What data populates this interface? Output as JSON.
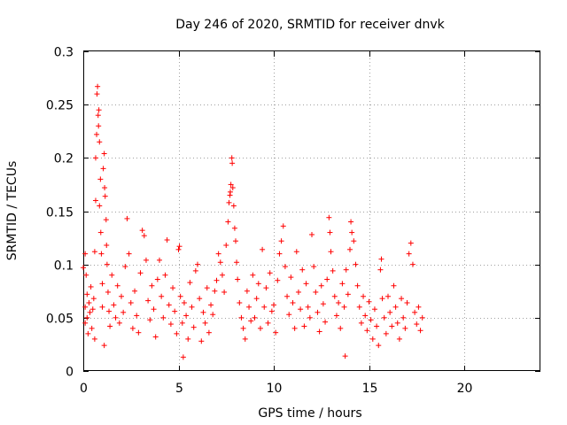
{
  "chart_data": {
    "type": "scatter",
    "title": "Day 246 of 2020, SRMTID for receiver dnvk",
    "xlabel": "GPS time / hours",
    "ylabel": "SRMTID / TECUs",
    "xlim": [
      0,
      24
    ],
    "ylim": [
      0,
      0.3
    ],
    "xticks": [
      0,
      5,
      10,
      15,
      20
    ],
    "xtick_labels": [
      "0",
      "5",
      "10",
      "15",
      "20"
    ],
    "yticks": [
      0,
      0.05,
      0.1,
      0.15,
      0.2,
      0.25,
      0.3
    ],
    "ytick_labels": [
      "0",
      "0.05",
      "0.1",
      "0.15",
      "0.2",
      "0.25",
      "0.3"
    ],
    "grid": true,
    "marker": "+",
    "color": "#ff0000",
    "series": [
      {
        "name": "SRMTID",
        "points": [
          [
            0.0,
            0.097
          ],
          [
            0.1,
            0.11
          ],
          [
            0.1,
            0.06
          ],
          [
            0.1,
            0.045
          ],
          [
            0.15,
            0.09
          ],
          [
            0.2,
            0.072
          ],
          [
            0.2,
            0.05
          ],
          [
            0.25,
            0.035
          ],
          [
            0.3,
            0.064
          ],
          [
            0.35,
            0.055
          ],
          [
            0.4,
            0.079
          ],
          [
            0.45,
            0.04
          ],
          [
            0.5,
            0.058
          ],
          [
            0.55,
            0.068
          ],
          [
            0.6,
            0.112
          ],
          [
            0.6,
            0.03
          ],
          [
            0.65,
            0.16
          ],
          [
            0.65,
            0.2
          ],
          [
            0.7,
            0.222
          ],
          [
            0.72,
            0.26
          ],
          [
            0.75,
            0.267
          ],
          [
            0.78,
            0.24
          ],
          [
            0.8,
            0.23
          ],
          [
            0.82,
            0.245
          ],
          [
            0.85,
            0.215
          ],
          [
            0.85,
            0.155
          ],
          [
            0.9,
            0.18
          ],
          [
            0.92,
            0.13
          ],
          [
            0.95,
            0.11
          ],
          [
            1.0,
            0.082
          ],
          [
            1.0,
            0.06
          ],
          [
            1.05,
            0.19
          ],
          [
            1.1,
            0.204
          ],
          [
            1.12,
            0.172
          ],
          [
            1.15,
            0.164
          ],
          [
            1.2,
            0.142
          ],
          [
            1.22,
            0.118
          ],
          [
            1.25,
            0.1
          ],
          [
            1.3,
            0.074
          ],
          [
            1.35,
            0.056
          ],
          [
            1.4,
            0.042
          ],
          [
            1.1,
            0.024
          ],
          [
            1.5,
            0.09
          ],
          [
            1.6,
            0.062
          ],
          [
            1.7,
            0.05
          ],
          [
            1.8,
            0.08
          ],
          [
            1.9,
            0.045
          ],
          [
            2.0,
            0.07
          ],
          [
            2.1,
            0.055
          ],
          [
            2.2,
            0.098
          ],
          [
            2.3,
            0.143
          ],
          [
            2.4,
            0.11
          ],
          [
            2.5,
            0.064
          ],
          [
            2.6,
            0.04
          ],
          [
            2.7,
            0.075
          ],
          [
            2.8,
            0.052
          ],
          [
            2.9,
            0.036
          ],
          [
            3.0,
            0.092
          ],
          [
            3.1,
            0.132
          ],
          [
            3.2,
            0.127
          ],
          [
            3.3,
            0.104
          ],
          [
            3.4,
            0.066
          ],
          [
            3.5,
            0.048
          ],
          [
            3.6,
            0.08
          ],
          [
            3.7,
            0.058
          ],
          [
            3.8,
            0.032
          ],
          [
            3.9,
            0.086
          ],
          [
            4.0,
            0.104
          ],
          [
            4.1,
            0.07
          ],
          [
            4.2,
            0.05
          ],
          [
            4.3,
            0.09
          ],
          [
            4.4,
            0.123
          ],
          [
            4.5,
            0.062
          ],
          [
            4.6,
            0.044
          ],
          [
            4.7,
            0.078
          ],
          [
            4.8,
            0.056
          ],
          [
            4.9,
            0.035
          ],
          [
            5.0,
            0.114
          ],
          [
            5.05,
            0.117
          ],
          [
            5.1,
            0.07
          ],
          [
            5.2,
            0.045
          ],
          [
            5.25,
            0.013
          ],
          [
            5.3,
            0.064
          ],
          [
            5.4,
            0.052
          ],
          [
            5.5,
            0.03
          ],
          [
            5.6,
            0.083
          ],
          [
            5.7,
            0.06
          ],
          [
            5.8,
            0.041
          ],
          [
            5.9,
            0.094
          ],
          [
            6.0,
            0.1
          ],
          [
            6.1,
            0.068
          ],
          [
            6.2,
            0.028
          ],
          [
            6.3,
            0.055
          ],
          [
            6.4,
            0.045
          ],
          [
            6.5,
            0.078
          ],
          [
            6.6,
            0.036
          ],
          [
            6.7,
            0.062
          ],
          [
            6.8,
            0.053
          ],
          [
            6.9,
            0.075
          ],
          [
            7.0,
            0.085
          ],
          [
            7.1,
            0.11
          ],
          [
            7.2,
            0.102
          ],
          [
            7.3,
            0.09
          ],
          [
            7.4,
            0.074
          ],
          [
            7.5,
            0.118
          ],
          [
            7.6,
            0.14
          ],
          [
            7.65,
            0.158
          ],
          [
            7.7,
            0.165
          ],
          [
            7.72,
            0.168
          ],
          [
            7.75,
            0.175
          ],
          [
            7.8,
            0.2
          ],
          [
            7.82,
            0.195
          ],
          [
            7.85,
            0.172
          ],
          [
            7.9,
            0.155
          ],
          [
            7.95,
            0.134
          ],
          [
            8.0,
            0.122
          ],
          [
            8.05,
            0.102
          ],
          [
            8.1,
            0.086
          ],
          [
            8.2,
            0.064
          ],
          [
            8.3,
            0.05
          ],
          [
            8.4,
            0.04
          ],
          [
            8.5,
            0.03
          ],
          [
            8.6,
            0.075
          ],
          [
            8.7,
            0.06
          ],
          [
            8.8,
            0.047
          ],
          [
            8.9,
            0.09
          ],
          [
            9.0,
            0.05
          ],
          [
            9.1,
            0.068
          ],
          [
            9.2,
            0.082
          ],
          [
            9.3,
            0.04
          ],
          [
            9.4,
            0.114
          ],
          [
            9.5,
            0.06
          ],
          [
            9.6,
            0.078
          ],
          [
            9.7,
            0.045
          ],
          [
            9.8,
            0.092
          ],
          [
            9.9,
            0.056
          ],
          [
            10.0,
            0.062
          ],
          [
            10.1,
            0.036
          ],
          [
            10.2,
            0.085
          ],
          [
            10.3,
            0.11
          ],
          [
            10.4,
            0.122
          ],
          [
            10.5,
            0.136
          ],
          [
            10.6,
            0.098
          ],
          [
            10.7,
            0.07
          ],
          [
            10.8,
            0.053
          ],
          [
            10.9,
            0.088
          ],
          [
            11.0,
            0.064
          ],
          [
            11.1,
            0.04
          ],
          [
            11.2,
            0.112
          ],
          [
            11.3,
            0.074
          ],
          [
            11.4,
            0.058
          ],
          [
            11.5,
            0.095
          ],
          [
            11.6,
            0.042
          ],
          [
            11.7,
            0.082
          ],
          [
            11.8,
            0.06
          ],
          [
            11.9,
            0.05
          ],
          [
            12.0,
            0.128
          ],
          [
            12.1,
            0.098
          ],
          [
            12.2,
            0.074
          ],
          [
            12.3,
            0.055
          ],
          [
            12.4,
            0.037
          ],
          [
            12.5,
            0.08
          ],
          [
            12.6,
            0.063
          ],
          [
            12.7,
            0.046
          ],
          [
            12.8,
            0.086
          ],
          [
            12.9,
            0.144
          ],
          [
            12.95,
            0.13
          ],
          [
            13.0,
            0.112
          ],
          [
            13.1,
            0.094
          ],
          [
            13.2,
            0.07
          ],
          [
            13.3,
            0.052
          ],
          [
            13.4,
            0.064
          ],
          [
            13.5,
            0.04
          ],
          [
            13.6,
            0.082
          ],
          [
            13.7,
            0.06
          ],
          [
            13.75,
            0.014
          ],
          [
            13.8,
            0.095
          ],
          [
            13.9,
            0.072
          ],
          [
            14.0,
            0.114
          ],
          [
            14.05,
            0.14
          ],
          [
            14.1,
            0.13
          ],
          [
            14.2,
            0.122
          ],
          [
            14.3,
            0.1
          ],
          [
            14.4,
            0.08
          ],
          [
            14.5,
            0.06
          ],
          [
            14.6,
            0.045
          ],
          [
            14.7,
            0.07
          ],
          [
            14.8,
            0.052
          ],
          [
            14.9,
            0.038
          ],
          [
            15.0,
            0.065
          ],
          [
            15.1,
            0.048
          ],
          [
            15.2,
            0.03
          ],
          [
            15.3,
            0.058
          ],
          [
            15.4,
            0.042
          ],
          [
            15.5,
            0.024
          ],
          [
            15.6,
            0.095
          ],
          [
            15.65,
            0.105
          ],
          [
            15.7,
            0.068
          ],
          [
            15.8,
            0.05
          ],
          [
            15.9,
            0.035
          ],
          [
            16.0,
            0.07
          ],
          [
            16.1,
            0.055
          ],
          [
            16.2,
            0.042
          ],
          [
            16.3,
            0.08
          ],
          [
            16.4,
            0.06
          ],
          [
            16.5,
            0.045
          ],
          [
            16.6,
            0.03
          ],
          [
            16.7,
            0.068
          ],
          [
            16.8,
            0.05
          ],
          [
            16.9,
            0.04
          ],
          [
            17.0,
            0.064
          ],
          [
            17.1,
            0.11
          ],
          [
            17.2,
            0.12
          ],
          [
            17.3,
            0.1
          ],
          [
            17.4,
            0.055
          ],
          [
            17.5,
            0.044
          ],
          [
            17.6,
            0.06
          ],
          [
            17.7,
            0.038
          ],
          [
            17.8,
            0.05
          ]
        ]
      }
    ]
  }
}
